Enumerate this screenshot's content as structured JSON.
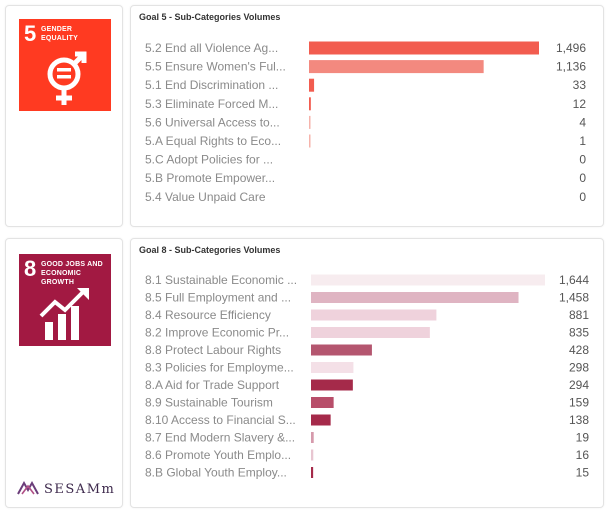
{
  "goal5": {
    "tile_number": "5",
    "tile_name": "GENDER EQUALITY",
    "colors": {
      "tile": "#ff3a21"
    }
  },
  "goal8": {
    "tile_number": "8",
    "tile_name": "GOOD JOBS AND ECONOMIC GROWTH",
    "colors": {
      "tile": "#a21942"
    }
  },
  "brand": {
    "name": "SESAMm",
    "icon": "sesamm-logo-icon"
  },
  "chart_data": [
    {
      "type": "bar",
      "orientation": "horizontal",
      "title": "Goal 5 - Sub-Categories Volumes",
      "categories": [
        "5.2 End all Violence Ag...",
        "5.5 Ensure Women's Ful...",
        "5.1 End Discrimination ...",
        "5.3 Eliminate Forced M...",
        "5.6 Universal Access to...",
        "5.A Equal Rights to Eco...",
        "5.C Adopt Policies for ...",
        "5.B Promote Empower...",
        "5.4 Value Unpaid Care"
      ],
      "values": [
        1496,
        1136,
        33,
        12,
        4,
        1,
        0,
        0,
        0
      ],
      "value_labels": [
        "1,496",
        "1,136",
        "33",
        "12",
        "4",
        "1",
        "0",
        "0",
        "0"
      ],
      "colors": [
        "#f25c4f",
        "#f3897f",
        "#f25c4f",
        "#f25c4f",
        "#f6b3ab",
        "#f6b3ab",
        "#f6b3ab",
        "#f6b3ab",
        "#f6b3ab"
      ],
      "xlim": [
        0,
        1496
      ]
    },
    {
      "type": "bar",
      "orientation": "horizontal",
      "title": "Goal 8 - Sub-Categories Volumes",
      "categories": [
        "8.1 Sustainable Economic ...",
        "8.5 Full Employment and ...",
        "8.4 Resource Efficiency",
        "8.2 Improve Economic Pr...",
        "8.8 Protect Labour Rights",
        "8.3 Policies for Employme...",
        "8.A Aid for Trade Support",
        "8.9 Sustainable Tourism",
        "8.10 Access to Financial S...",
        "8.7 End Modern Slavery &...",
        "8.6 Promote Youth Emplo...",
        "8.B Global Youth Employ..."
      ],
      "values": [
        1644,
        1458,
        881,
        835,
        428,
        298,
        294,
        159,
        138,
        19,
        16,
        15
      ],
      "value_labels": [
        "1,644",
        "1,458",
        "881",
        "835",
        "428",
        "298",
        "294",
        "159",
        "138",
        "19",
        "16",
        "15"
      ],
      "colors": [
        "#f7ecef",
        "#dfb4c2",
        "#efd2dc",
        "#efd2dc",
        "#b4566f",
        "#f4e0e7",
        "#a52a4a",
        "#b84e6a",
        "#a52a4a",
        "#d69aac",
        "#e8c6d1",
        "#a52a4a"
      ],
      "xlim": [
        0,
        1644
      ]
    }
  ]
}
